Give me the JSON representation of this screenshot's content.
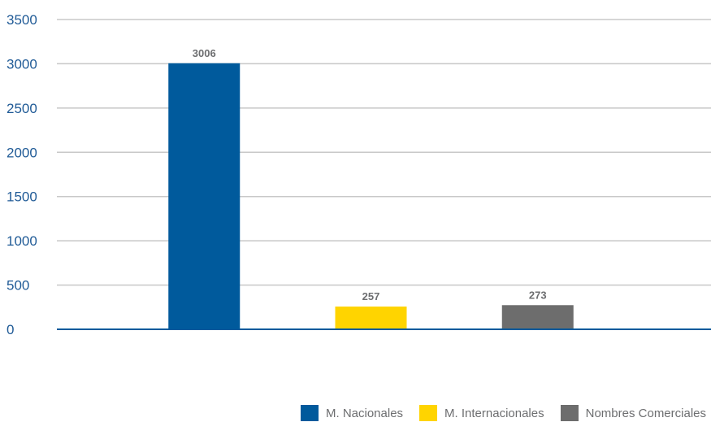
{
  "chart_data": {
    "type": "bar",
    "categories": [
      "M. Nacionales",
      "M. Internacionales",
      "Nombres Comerciales"
    ],
    "values": [
      3006,
      257,
      273
    ],
    "data_labels": [
      "3006",
      "257",
      "273"
    ],
    "colors": [
      "#005a9c",
      "#ffd400",
      "#6d6d6d"
    ],
    "ylim": [
      0,
      3500
    ],
    "yticks": [
      0,
      500,
      1000,
      1500,
      2000,
      2500,
      3000,
      3500
    ],
    "ytick_labels": [
      "0",
      "500",
      "1000",
      "1500",
      "2000",
      "2500",
      "3000",
      "3500"
    ],
    "grid": true,
    "legend_position": "bottom-right",
    "axis_color": "#005a9c",
    "grid_color": "#c8c8c8",
    "tick_label_color": "#1f5a96"
  },
  "legend": {
    "items": [
      {
        "label": "M. Nacionales",
        "color": "#005a9c"
      },
      {
        "label": "M. Internacionales",
        "color": "#ffd400"
      },
      {
        "label": "Nombres Comerciales",
        "color": "#6d6d6d"
      }
    ]
  }
}
